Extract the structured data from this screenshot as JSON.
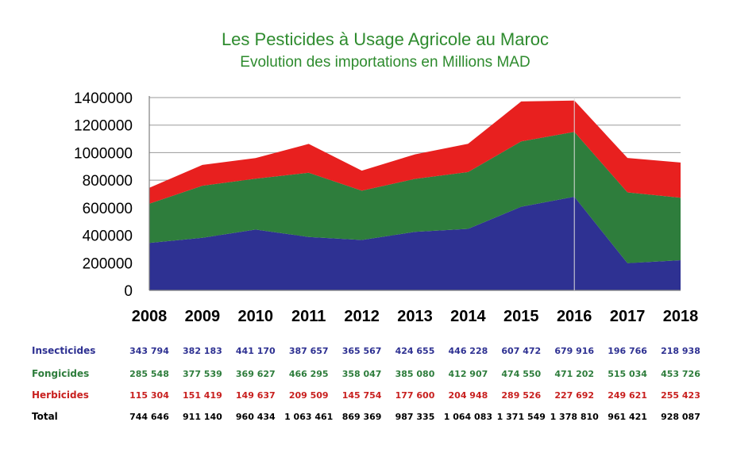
{
  "chart_data": {
    "type": "area",
    "stacked": true,
    "title": "Les Pesticides à Usage Agricole au Maroc",
    "subtitle": "Evolution des importations en Millions MAD",
    "categories": [
      "2008",
      "2009",
      "2010",
      "2011",
      "2012",
      "2013",
      "2014",
      "2015",
      "2016",
      "2017",
      "2018"
    ],
    "ylim": [
      0,
      1400000
    ],
    "yticks": [
      "0",
      "200000",
      "400000",
      "600000",
      "800000",
      "1000000",
      "1200000",
      "1400000"
    ],
    "grid": true,
    "series": [
      {
        "name": "Insecticides",
        "color": "#2e3192",
        "values": [
          343794,
          382183,
          441170,
          387657,
          365567,
          424655,
          446228,
          607472,
          679916,
          196766,
          218938
        ]
      },
      {
        "name": "Fongicides",
        "color": "#2e7d3c",
        "values": [
          285548,
          377539,
          369627,
          466295,
          358047,
          385080,
          412907,
          474550,
          471202,
          515034,
          453726
        ]
      },
      {
        "name": "Herbicides",
        "color": "#e8201f",
        "values": [
          115304,
          151419,
          149637,
          209509,
          145754,
          177600,
          204948,
          289526,
          227692,
          249621,
          255423
        ]
      }
    ],
    "table": {
      "rows": [
        {
          "label": "Insecticides",
          "color": "#2e3192",
          "cells": [
            "343 794",
            "382 183",
            "441 170",
            "387 657",
            "365 567",
            "424 655",
            "446 228",
            "607 472",
            "679 916",
            "196 766",
            "218 938"
          ]
        },
        {
          "label": "Fongicides",
          "color": "#2e7d3c",
          "cells": [
            "285 548",
            "377 539",
            "369 627",
            "466 295",
            "358 047",
            "385 080",
            "412 907",
            "474 550",
            "471 202",
            "515 034",
            "453 726"
          ]
        },
        {
          "label": "Herbicides",
          "color": "#c8201f",
          "cells": [
            "115 304",
            "151 419",
            "149 637",
            "209 509",
            "145 754",
            "177 600",
            "204 948",
            "289 526",
            "227 692",
            "249 621",
            "255 423"
          ]
        },
        {
          "label": "Total",
          "color": "#000000",
          "cells": [
            "744 646",
            "911 140",
            "960 434",
            "1 063 461",
            "869 369",
            "987 335",
            "1 064 083",
            "1 371 549",
            "1 378 810",
            "961 421",
            "928 087"
          ]
        }
      ]
    }
  }
}
